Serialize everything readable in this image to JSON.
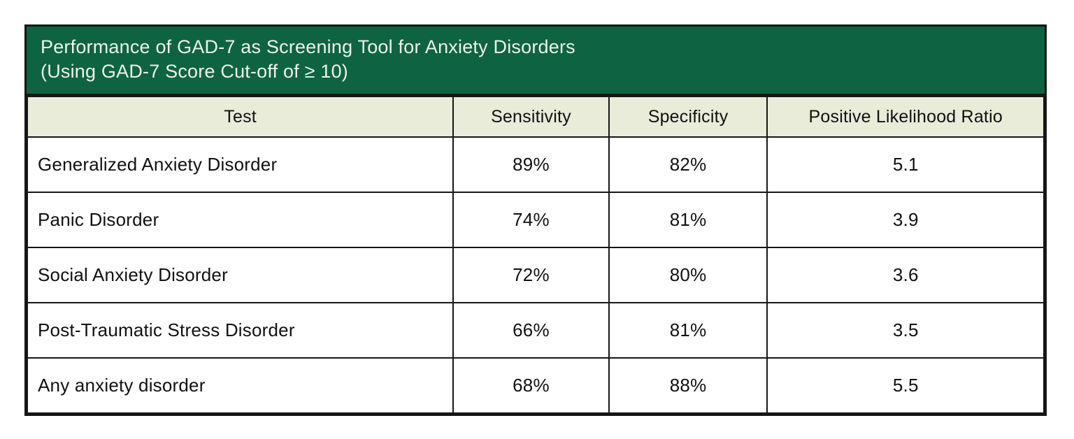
{
  "colors": {
    "title_bg": "#0e6342",
    "title_text": "#ecf3eb",
    "header_bg": "#e8ecd8",
    "border": "#161616",
    "body_text": "#111111",
    "page_bg": "#ffffff"
  },
  "chart_data": {
    "type": "table",
    "title": "Performance of GAD-7 as Screening Tool for Anxiety Disorders",
    "subtitle": "(Using GAD-7 Score Cut-off of ≥ 10)",
    "columns": [
      "Test",
      "Sensitivity",
      "Specificity",
      "Positive Likelihood Ratio"
    ],
    "rows": [
      [
        "Generalized Anxiety Disorder",
        "89%",
        "82%",
        "5.1"
      ],
      [
        "Panic Disorder",
        "74%",
        "81%",
        "3.9"
      ],
      [
        "Social Anxiety Disorder",
        "72%",
        "80%",
        "3.6"
      ],
      [
        "Post-Traumatic Stress Disorder",
        "66%",
        "81%",
        "3.5"
      ],
      [
        "Any anxiety disorder",
        "68%",
        "88%",
        "5.5"
      ]
    ]
  }
}
